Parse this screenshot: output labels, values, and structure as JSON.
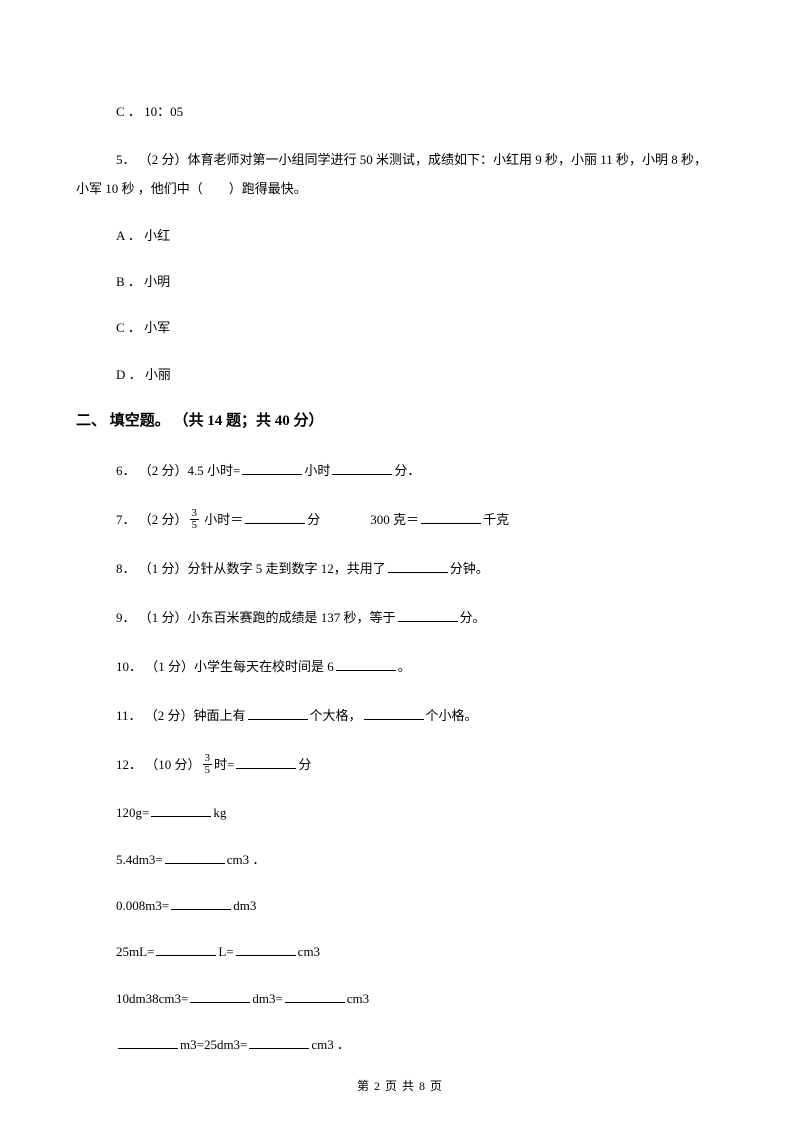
{
  "q4": {
    "optC": "C ． 10：05"
  },
  "q5": {
    "text1": "5． （2 分）体育老师对第一小组同学进行 50 米测试，成绩如下：小红用 9 秒，小丽 11 秒，小明 8 秒，",
    "text2": "小军 10 秒  ，他们中（　　）跑得最快。",
    "optA": "A ． 小红",
    "optB": "B ． 小明",
    "optC": "C ． 小军",
    "optD": "D ． 小丽"
  },
  "section2": {
    "title": "二、 填空题。 （共 14 题；共 40 分）"
  },
  "q6": {
    "prefix": "6． （2 分）4.5 小时=",
    "mid": "小时",
    "suffix": "分．"
  },
  "q7": {
    "prefix": "7． （2 分）",
    "frac_num": "3",
    "frac_den": "5",
    "mid1": " 小时＝",
    "mid2": "分",
    "mid3": "300 克＝",
    "suffix": "千克"
  },
  "q8": {
    "prefix": "8． （1 分）分针从数字 5 走到数字 12，共用了",
    "suffix": "分钟。"
  },
  "q9": {
    "prefix": "9． （1 分）小东百米赛跑的成绩是 137 秒，等于",
    "suffix": "分。"
  },
  "q10": {
    "prefix": "10． （1 分）小学生每天在校时间是 6",
    "suffix": "。"
  },
  "q11": {
    "prefix": "11． （2 分）钟面上有",
    "mid": "个大格，",
    "suffix": "个小格。"
  },
  "q12": {
    "prefix": "12． （10 分）",
    "frac_num": "3",
    "frac_den": "5",
    "mid": "时=",
    "suffix": "分",
    "l2a": "120g=",
    "l2b": "kg",
    "l3a": "5.4dm3=",
    "l3b": "cm3 ．",
    "l4a": "0.008m3=",
    "l4b": "dm3",
    "l5a": "25mL=",
    "l5b": "L=",
    "l5c": "cm3",
    "l6a": "10dm38cm3=",
    "l6b": "dm3=",
    "l6c": "cm3",
    "l7a": "m3=25dm3=",
    "l7b": "cm3 ．"
  },
  "footer": {
    "text": "第 2 页 共 8 页"
  }
}
